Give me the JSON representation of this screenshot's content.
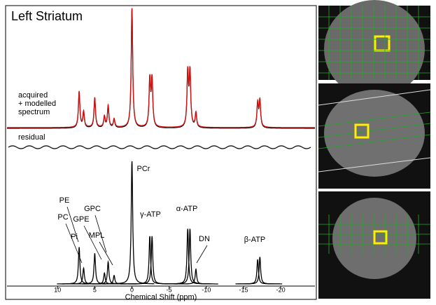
{
  "chart_data": {
    "type": "spectrum",
    "title": "Left Striatum",
    "trace_labels": [
      "acquired",
      "+ modelled",
      "spectrum",
      "residual"
    ],
    "xlabel": "Chemical Shift (ppm)",
    "xlim": [
      16.8,
      -24.6
    ],
    "xticks": [
      10,
      5,
      0,
      -5,
      -10,
      -15,
      -20
    ],
    "acquired_color": "#000000",
    "model_color": "#cc1111",
    "peaks": [
      {
        "label": "PE",
        "ppm": [
          7.1
        ],
        "amplitude": [
          30
        ]
      },
      {
        "label": "PC",
        "ppm": [
          6.5
        ],
        "amplitude": [
          13
        ]
      },
      {
        "label": "Pi",
        "ppm": [
          5.0
        ],
        "amplitude": [
          25
        ]
      },
      {
        "label": "GPE",
        "ppm": [
          3.7
        ],
        "amplitude": [
          9
        ]
      },
      {
        "label": "GPC",
        "ppm": [
          3.2
        ],
        "amplitude": [
          18
        ]
      },
      {
        "label": "MPL",
        "ppm": [
          2.4
        ],
        "amplitude": [
          7
        ]
      },
      {
        "label": "PCr",
        "ppm": [
          0
        ],
        "amplitude": [
          100
        ]
      },
      {
        "label": "γ-ATP",
        "ppm": [
          -2.4,
          -2.7
        ],
        "amplitude": [
          39,
          39
        ]
      },
      {
        "label": "α-ATP",
        "ppm": [
          -7.5,
          -7.8
        ],
        "amplitude": [
          45,
          45
        ]
      },
      {
        "label": "DN",
        "ppm": [
          -8.6
        ],
        "amplitude": [
          12
        ]
      },
      {
        "label": "β-ATP",
        "ppm": [
          -16.9,
          -17.2
        ],
        "amplitude": [
          20,
          22
        ]
      }
    ]
  }
}
